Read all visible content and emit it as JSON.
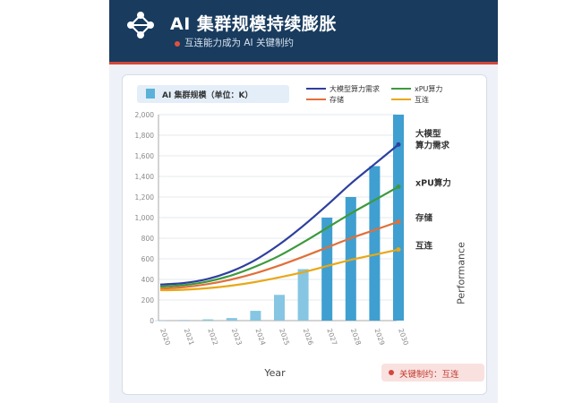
{
  "header": {
    "title": "AI 集群规模持续膨胀",
    "subtitle": "互连能力成为 AI 关键制约"
  },
  "footer": {
    "badge": "关键制约：互连"
  },
  "chart_data": {
    "type": "bar+line",
    "categories": [
      "2020",
      "2021",
      "2022",
      "2023",
      "2024",
      "2025",
      "2026",
      "2027",
      "2028",
      "2029",
      "2030"
    ],
    "bar_series": {
      "name": "AI 集群规模（单位：K）",
      "values": [
        2,
        6,
        12,
        25,
        95,
        250,
        500,
        1000,
        1200,
        1500,
        2000
      ],
      "color": "#5bb2d8"
    },
    "line_series": [
      {
        "name": "大模型算力需求",
        "end_label": "大模型\n算力需求",
        "color": "#2e3f9e",
        "values": [
          350,
          365,
          405,
          480,
          590,
          740,
          920,
          1120,
          1330,
          1520,
          1710
        ]
      },
      {
        "name": "xPU算力",
        "end_label": "xPU算力",
        "color": "#3c9a3c",
        "values": [
          330,
          345,
          380,
          440,
          525,
          630,
          760,
          900,
          1040,
          1170,
          1300
        ]
      },
      {
        "name": "存储",
        "end_label": "存储",
        "color": "#e0703a",
        "values": [
          310,
          325,
          355,
          400,
          460,
          535,
          620,
          710,
          800,
          880,
          960
        ]
      },
      {
        "name": "互连",
        "end_label": "互连",
        "color": "#e8a817",
        "values": [
          295,
          300,
          315,
          340,
          375,
          420,
          470,
          530,
          590,
          640,
          690
        ]
      }
    ],
    "y_ticks": [
      "0",
      "200",
      "400",
      "600",
      "800",
      "1,000",
      "1,200",
      "1,400",
      "1,600",
      "1,800",
      "2,000"
    ],
    "ylim": [
      0,
      2000
    ],
    "xlabel": "Year",
    "ylabel": "Performance",
    "legend_position": "top"
  }
}
